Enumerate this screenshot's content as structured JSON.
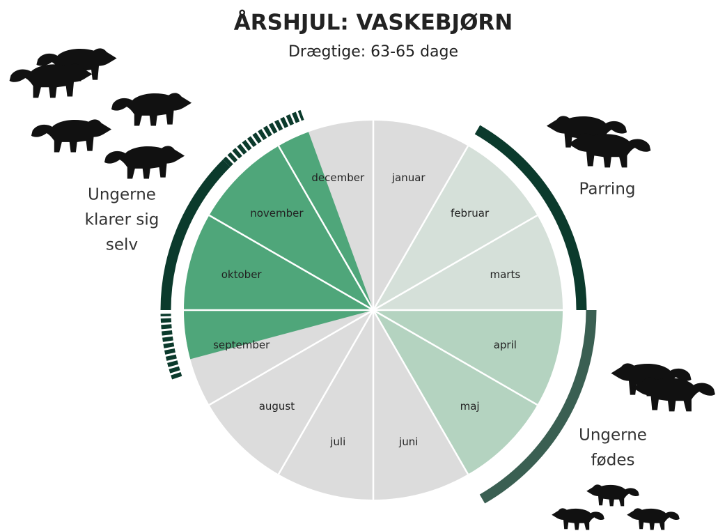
{
  "title": "ÅRSHJUL: VASKEBJØRN",
  "subtitle": "Drægtige: 63-65 dage",
  "months": [
    "januar",
    "februar",
    "marts",
    "april",
    "maj",
    "juni",
    "juli",
    "august",
    "september",
    "oktober",
    "november",
    "december"
  ],
  "phases": [
    {
      "lines": [
        "Parring"
      ]
    },
    {
      "lines": [
        "Ungerne",
        "fødes"
      ]
    },
    {
      "lines": [
        "Ungerne",
        "klarer sig",
        "selv"
      ]
    }
  ]
}
